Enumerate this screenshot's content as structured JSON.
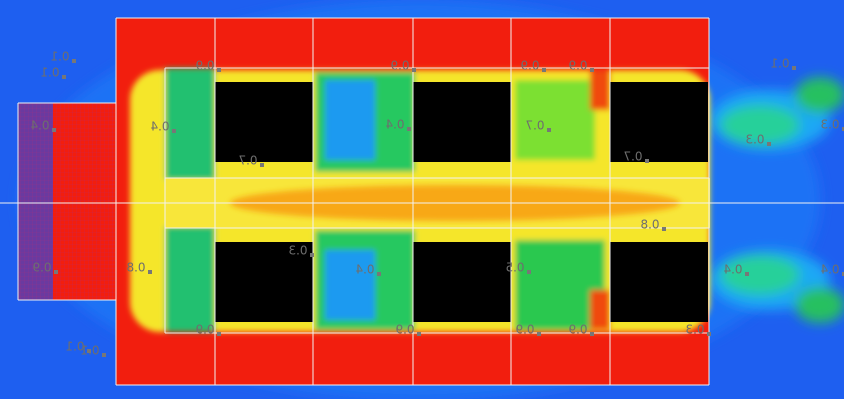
{
  "contour_labels": [
    "0.1",
    "0.1",
    "0.1",
    "0.4",
    "0.4",
    "0.9",
    "0.9",
    "0.9",
    "0.9",
    "0.4",
    "0.7",
    "0.7",
    "0.7",
    "0.8",
    "0.3",
    "0.9",
    "0.8",
    "0.4",
    "0.5",
    "0.4",
    "0.4",
    "0.3",
    "0.3",
    "0.1",
    "0.1",
    "0.9",
    "0.9",
    "0.9",
    "0.9",
    "0.3"
  ]
}
